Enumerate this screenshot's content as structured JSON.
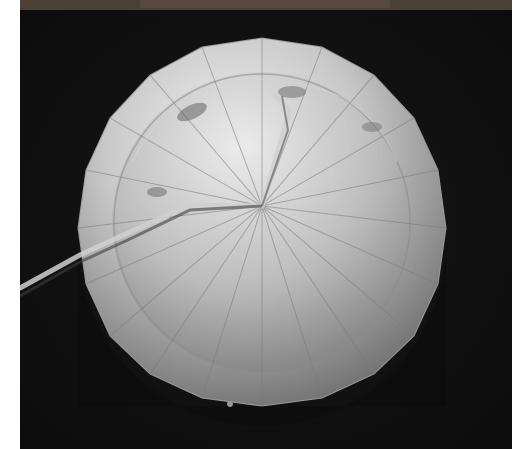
{
  "image": {
    "subject": "parachute-canopy-image",
    "colors": {
      "background": "#111111",
      "canopy_light": "#e2e2e2",
      "canopy_mid": "#a8a8a8",
      "canopy_dark": "#6e6e6e",
      "top_strip": "#4a4034"
    }
  }
}
